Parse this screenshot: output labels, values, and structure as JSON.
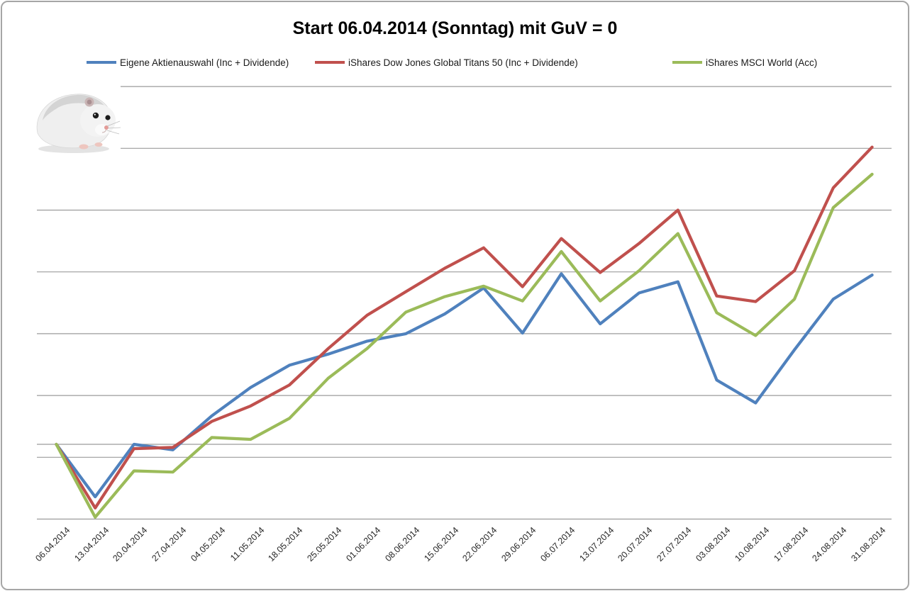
{
  "chart_data": {
    "type": "line",
    "title": "Start 06.04.2014 (Sonntag) mit GuV = 0",
    "xlabel": "",
    "ylabel": "",
    "legend_position": "top",
    "grid": "horizontal",
    "gridline_color": "#9b9b9b",
    "border_color": "#a6a6a6",
    "categories": [
      "06.04.2014",
      "13.04.2014",
      "20.04.2014",
      "27.04.2014",
      "04.05.2014",
      "11.05.2014",
      "18.05.2014",
      "25.05.2014",
      "01.06.2014",
      "08.06.2014",
      "15.06.2014",
      "22.06.2014",
      "29.06.2014",
      "06.07.2014",
      "13.07.2014",
      "20.07.2014",
      "27.07.2014",
      "03.08.2014",
      "10.08.2014",
      "17.08.2014",
      "24.08.2014",
      "31.08.2014"
    ],
    "series": [
      {
        "name": "Eigene Aktienauswahl (Inc + Dividende)",
        "color": "#4F81BD",
        "values": [
          0,
          -0.85,
          0,
          -0.09,
          0.46,
          0.92,
          1.28,
          1.46,
          1.67,
          1.79,
          2.11,
          2.53,
          1.8,
          2.76,
          1.95,
          2.45,
          2.63,
          1.04,
          0.67,
          1.53,
          2.35,
          2.74
        ]
      },
      {
        "name": "iShares Dow Jones Global Titans 50 (Inc + Dividende)",
        "color": "#C0504D",
        "values": [
          0,
          -1.03,
          -0.07,
          -0.05,
          0.37,
          0.62,
          0.96,
          1.55,
          2.09,
          2.47,
          2.85,
          3.18,
          2.55,
          3.33,
          2.78,
          3.25,
          3.79,
          2.4,
          2.31,
          2.81,
          4.15,
          4.81
        ]
      },
      {
        "name": "iShares MSCI World (Acc)",
        "color": "#9BBB59",
        "values": [
          0,
          -1.18,
          -0.43,
          -0.45,
          0.11,
          0.08,
          0.42,
          1.07,
          1.55,
          2.14,
          2.39,
          2.56,
          2.32,
          3.12,
          2.32,
          2.81,
          3.41,
          2.13,
          1.76,
          2.35,
          3.83,
          4.37
        ]
      }
    ],
    "y_axis": {
      "tick_labels_visible": false,
      "unit_note": "no numeric y labels visible; values measured in gridline units, 0 = start value on the category-axis line",
      "gridlines_units": [
        5.79,
        4.79,
        3.79,
        2.79,
        1.79,
        0.79,
        0,
        -0.21,
        -1.21
      ]
    },
    "decoration": {
      "hamster_image": "photo of a white dwarf hamster, top-left above plot"
    }
  }
}
